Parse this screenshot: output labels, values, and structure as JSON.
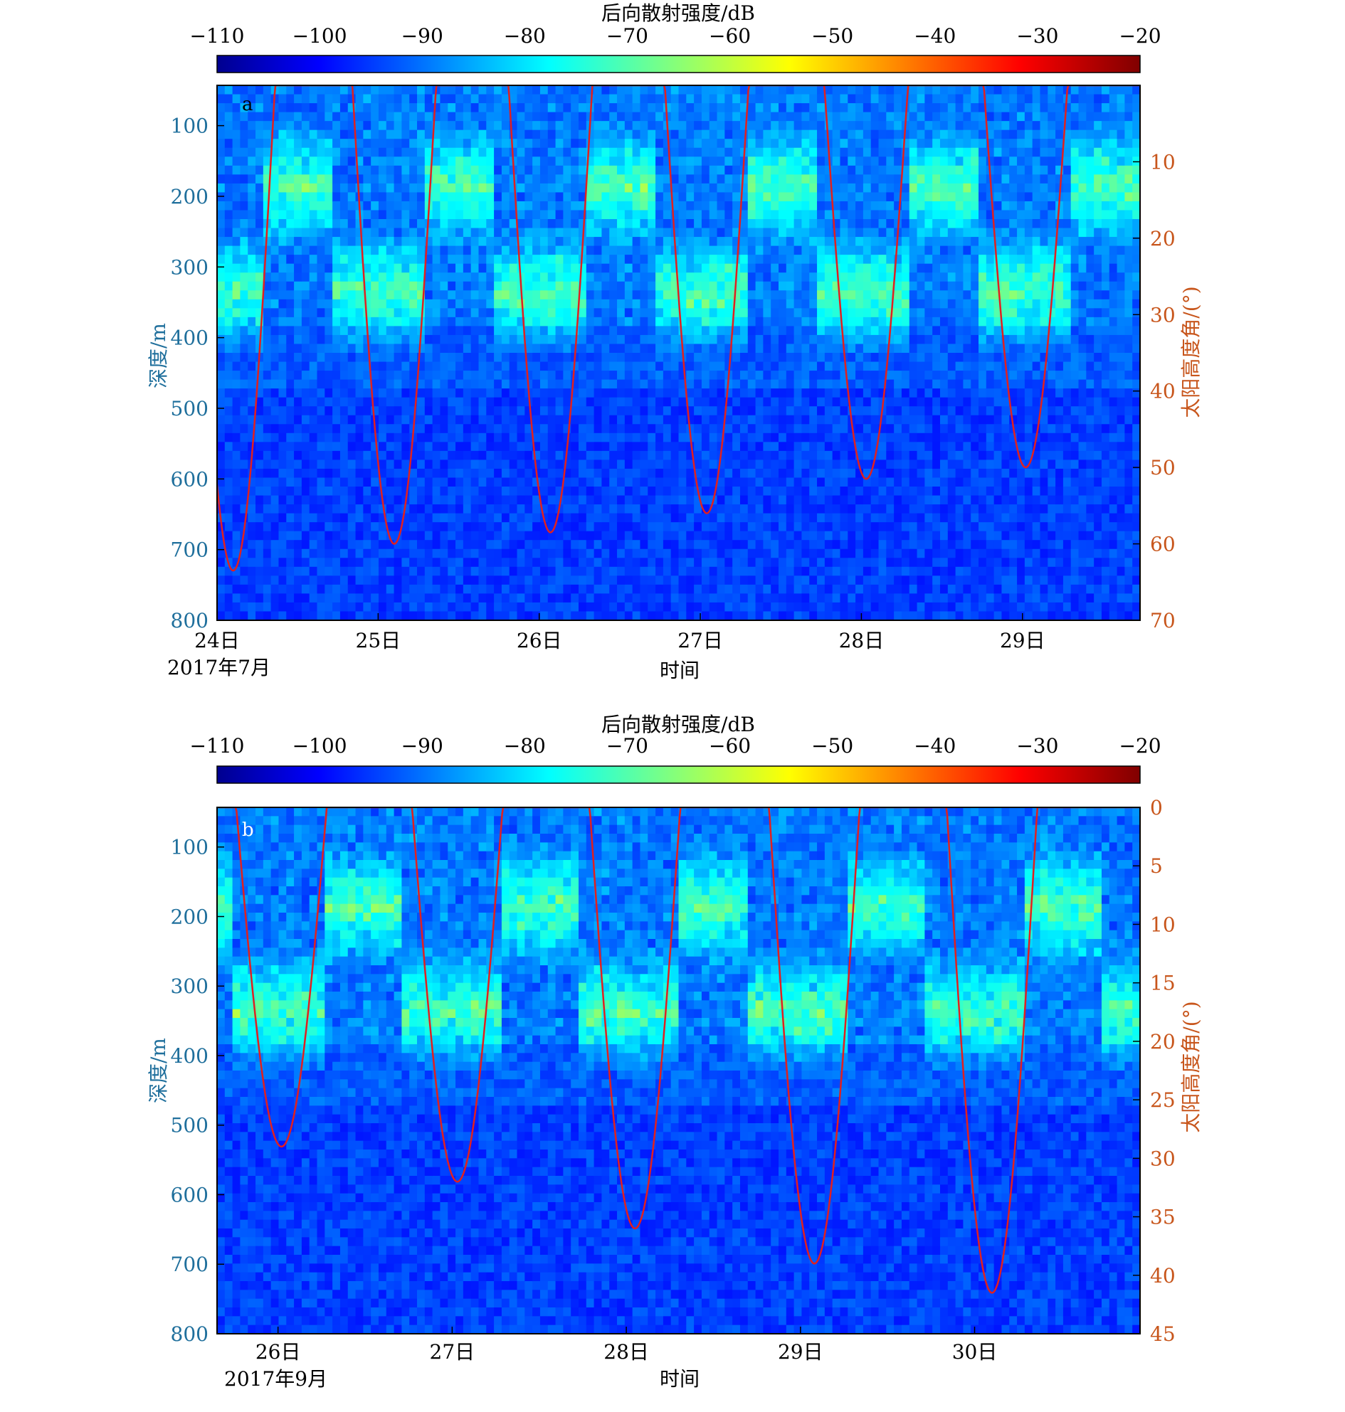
{
  "chart_data": [
    {
      "type": "heatmap",
      "panel_label": "a",
      "title": "",
      "colorbar": {
        "label": "后向散射强度/dB",
        "ticks": [
          "−110",
          "−100",
          "−90",
          "−80",
          "−70",
          "−60",
          "−50",
          "−40",
          "−30",
          "−20"
        ],
        "range": [
          -110,
          -20
        ],
        "colormap": "jet"
      },
      "xlabel": "时间",
      "x_ticks": [
        "24日",
        "25日",
        "26日",
        "27日",
        "28日",
        "29日"
      ],
      "x_start_label": "2017年7月",
      "x_range_days": [
        24.0,
        29.73
      ],
      "ylabel_left": "深度/m",
      "y_left_ticks": [
        100,
        200,
        300,
        400,
        500,
        600,
        700,
        800
      ],
      "y_left_range": [
        43,
        800
      ],
      "ylabel_right": "太阳高度角/(°)",
      "y_right_ticks": [
        10,
        20,
        30,
        40,
        50,
        60,
        70
      ],
      "y_right_range": [
        0,
        70
      ],
      "sun_curve": {
        "color": "#e02020",
        "noon_days": [
          24.1,
          25.1,
          26.07,
          27.04,
          28.03,
          29.02
        ],
        "noon_max_deg": [
          63.5,
          60,
          58.5,
          56,
          51.5,
          50
        ]
      }
    },
    {
      "type": "heatmap",
      "panel_label": "b",
      "title": "",
      "colorbar": {
        "label": "后向散射强度/dB",
        "ticks": [
          "−110",
          "−100",
          "−90",
          "−80",
          "−70",
          "−60",
          "−50",
          "−40",
          "−30",
          "−20"
        ],
        "range": [
          -110,
          -20
        ],
        "colormap": "jet"
      },
      "xlabel": "时间",
      "x_ticks": [
        "26日",
        "27日",
        "28日",
        "29日",
        "30日"
      ],
      "x_start_label": "2017年9月",
      "x_range_days": [
        25.65,
        30.95
      ],
      "ylabel_left": "深度/m",
      "y_left_ticks": [
        100,
        200,
        300,
        400,
        500,
        600,
        700,
        800
      ],
      "y_left_range": [
        43,
        800
      ],
      "ylabel_right": "太阳高度角/(°)",
      "y_right_ticks": [
        0,
        5,
        10,
        15,
        20,
        25,
        30,
        35,
        40,
        45
      ],
      "y_right_range": [
        0,
        45
      ],
      "sun_curve": {
        "color": "#e02020",
        "noon_days": [
          26.02,
          27.03,
          28.05,
          29.08,
          30.1
        ],
        "noon_max_deg": [
          29,
          32,
          36,
          39,
          41.5
        ]
      }
    }
  ],
  "colors": {
    "depth_axis": "#1f6f9c",
    "sun_axis": "#c8561c",
    "sun_curve": "#e02020"
  }
}
